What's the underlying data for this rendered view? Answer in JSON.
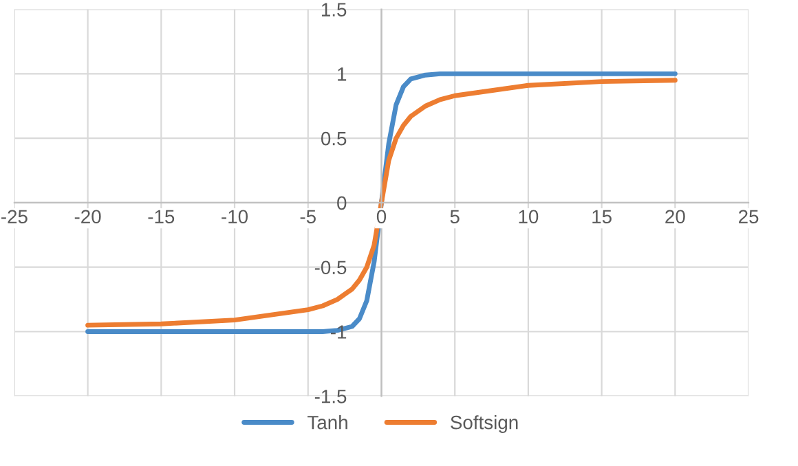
{
  "chart_data": {
    "type": "line",
    "x": [
      -20,
      -15,
      -10,
      -5,
      -4,
      -3,
      -2,
      -1.5,
      -1,
      -0.5,
      0,
      0.5,
      1,
      1.5,
      2,
      3,
      4,
      5,
      10,
      15,
      20
    ],
    "series": [
      {
        "name": "Tanh",
        "color": "#4a8bc8",
        "values": [
          -1,
          -1,
          -1,
          -1,
          -1,
          -0.99,
          -0.96,
          -0.9,
          -0.76,
          -0.46,
          0,
          0.46,
          0.76,
          0.9,
          0.96,
          0.99,
          1,
          1,
          1,
          1,
          1
        ]
      },
      {
        "name": "Softsign",
        "color": "#ed7d31",
        "values": [
          -0.95,
          -0.94,
          -0.91,
          -0.83,
          -0.8,
          -0.75,
          -0.67,
          -0.6,
          -0.5,
          -0.33,
          0,
          0.33,
          0.5,
          0.6,
          0.67,
          0.75,
          0.8,
          0.83,
          0.91,
          0.94,
          0.95
        ]
      }
    ],
    "xlim": [
      -25,
      25
    ],
    "ylim": [
      -1.5,
      1.5
    ],
    "xticks": [
      -25,
      -20,
      -15,
      -10,
      -5,
      0,
      5,
      10,
      15,
      20,
      25
    ],
    "yticks": [
      -1.5,
      -1,
      -0.5,
      0,
      0.5,
      1,
      1.5
    ],
    "grid": true,
    "legend": "bottom",
    "marker": "none",
    "line_style": "solid"
  }
}
